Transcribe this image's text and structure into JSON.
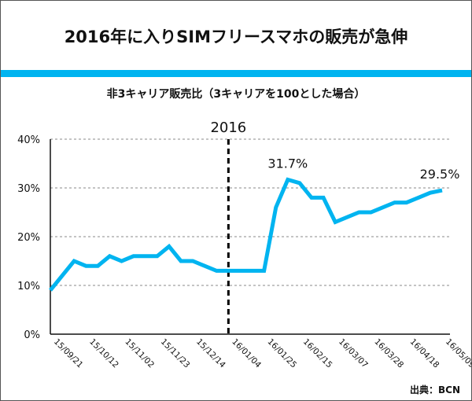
{
  "title": "2016年に入りSIMフリースマホの販売が急伸",
  "subtitle": "非3キャリア販売比（3キャリアを100とした場合）",
  "source": "出典：BCN",
  "colors": {
    "accent": "#00b4f0",
    "line": "#00b4f0"
  },
  "chart_data": {
    "type": "line",
    "title": "非3キャリア販売比（3キャリアを100とした場合）",
    "ylabel": "",
    "xlabel": "",
    "ylim": [
      0,
      40
    ],
    "yticks": [
      "0%",
      "10%",
      "20%",
      "30%",
      "40%"
    ],
    "xtick_labels": [
      "15/09/21",
      "15/10/12",
      "15/11/02",
      "15/11/23",
      "15/12/14",
      "16/01/04",
      "16/01/25",
      "16/02/15",
      "16/03/07",
      "16/03/28",
      "16/04/18",
      "16/05/09"
    ],
    "values": [
      9,
      12,
      15,
      14,
      14,
      16,
      15,
      16,
      16,
      16,
      18,
      15,
      15,
      14,
      13,
      13,
      13,
      13,
      13,
      26,
      31.7,
      31,
      28,
      28,
      23,
      24,
      25,
      25,
      26,
      27,
      27,
      28,
      29,
      29.5
    ],
    "annotations": [
      {
        "text": "31.7%",
        "index": 20
      },
      {
        "text": "29.5%",
        "index": 33
      },
      {
        "text": "2016",
        "index": 15
      }
    ],
    "grid": true
  }
}
